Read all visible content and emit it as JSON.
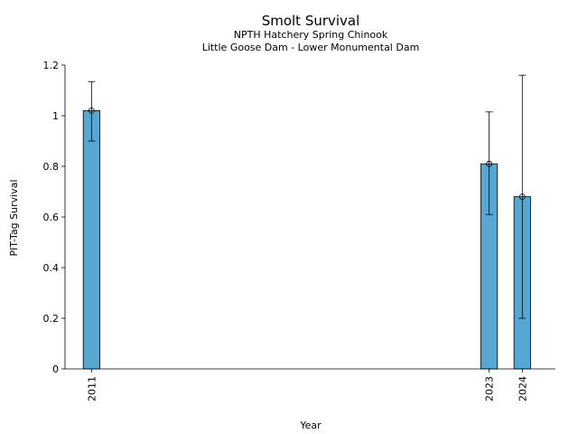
{
  "chart_data": {
    "type": "bar",
    "title": "Smolt Survival",
    "subtitle_lines": [
      "NPTH Hatchery Spring Chinook",
      "Little Goose Dam - Lower Monumental Dam"
    ],
    "xlabel": "Year",
    "ylabel": "PIT-Tag Survival",
    "x_range": [
      2010.2,
      2025.0
    ],
    "ylim": [
      0,
      1.2
    ],
    "yticks": [
      0,
      0.2,
      0.4,
      0.6,
      0.8,
      1,
      1.2
    ],
    "ytick_labels": [
      "0",
      "0.2",
      "0.4",
      "0.6",
      "0.8",
      "1",
      "1.2"
    ],
    "x": [
      2011,
      2023,
      2024
    ],
    "xtick_labels": [
      "2011",
      "2023",
      "2024"
    ],
    "values": [
      1.02,
      0.81,
      0.68
    ],
    "error_low": [
      0.9,
      0.61,
      0.2
    ],
    "error_high": [
      1.135,
      1.015,
      1.16
    ],
    "bar_color": "#56A8D3",
    "edge_color": "#000000",
    "grid": false
  }
}
